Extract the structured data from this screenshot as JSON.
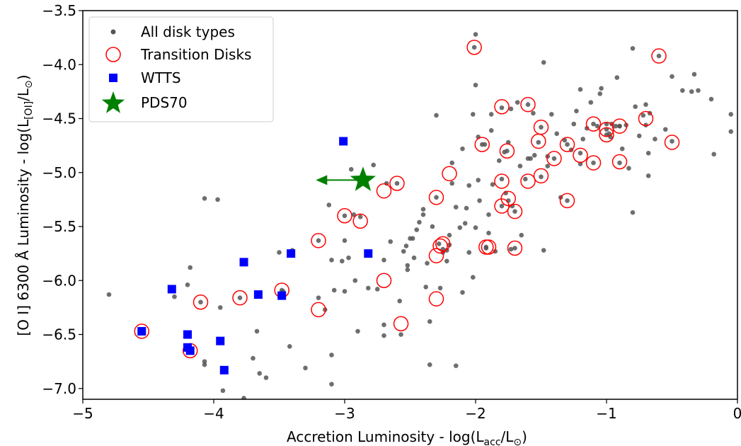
{
  "chart_data": {
    "type": "scatter",
    "xlabel": {
      "main": "Accretion Luminosity - log(L",
      "sub": "acc",
      "after": "/L",
      "sun": "⊙",
      "close": ")"
    },
    "ylabel": {
      "main": "[O I] 6300 Å Luminosity - log(L",
      "sub": "[OI]",
      "after": "/L",
      "sun": "⊙",
      "close": ")"
    },
    "xlim": [
      -5,
      0
    ],
    "ylim": [
      -7.1,
      -3.5
    ],
    "xticks": [
      -5,
      -4,
      -3,
      -2,
      -1,
      0
    ],
    "xtick_labels": [
      "−5",
      "−4",
      "−3",
      "−2",
      "−1",
      "0"
    ],
    "yticks": [
      -3.5,
      -4.0,
      -4.5,
      -5.0,
      -5.5,
      -6.0,
      -6.5,
      -7.0
    ],
    "ytick_labels": [
      "−3.5",
      "−4.0",
      "−4.5",
      "−5.0",
      "−5.5",
      "−6.0",
      "−6.5",
      "−7.0"
    ],
    "grid": false,
    "legend_position": "top-left",
    "colors": {
      "all_disks": "#555555",
      "transition": "#ff0000",
      "wtts": "#0000ff",
      "pds70": "#008000"
    },
    "legend": [
      {
        "label": "All disk types",
        "marker": "dot"
      },
      {
        "label": "Transition Disks",
        "marker": "open-circle"
      },
      {
        "label": "WTTS",
        "marker": "square"
      },
      {
        "label": "PDS70",
        "marker": "star"
      }
    ],
    "series": [
      {
        "name": "All disk types",
        "points": [
          [
            -4.8,
            -6.13
          ],
          [
            -4.55,
            -6.48
          ],
          [
            -4.3,
            -6.15
          ],
          [
            -4.2,
            -6.04
          ],
          [
            -4.18,
            -5.88
          ],
          [
            -4.18,
            -6.63
          ],
          [
            -4.1,
            -6.2
          ],
          [
            -4.07,
            -5.24
          ],
          [
            -4.07,
            -6.75
          ],
          [
            -4.07,
            -6.78
          ],
          [
            -3.97,
            -5.25
          ],
          [
            -3.95,
            -6.55
          ],
          [
            -3.95,
            -6.25
          ],
          [
            -3.93,
            -7.02
          ],
          [
            -3.8,
            -6.16
          ],
          [
            -3.77,
            -7.09
          ],
          [
            -3.7,
            -6.72
          ],
          [
            -3.67,
            -6.47
          ],
          [
            -3.65,
            -6.13
          ],
          [
            -3.65,
            -6.86
          ],
          [
            -3.6,
            -6.9
          ],
          [
            -3.5,
            -5.74
          ],
          [
            -3.48,
            -6.09
          ],
          [
            -3.47,
            -6.1
          ],
          [
            -3.42,
            -6.61
          ],
          [
            -3.4,
            -5.72
          ],
          [
            -3.3,
            -6.81
          ],
          [
            -3.2,
            -6.16
          ],
          [
            -3.2,
            -5.63
          ],
          [
            -3.15,
            -6.27
          ],
          [
            -3.12,
            -5.3
          ],
          [
            -3.1,
            -6.96
          ],
          [
            -3.1,
            -6.69
          ],
          [
            -3.1,
            -5.81
          ],
          [
            -3.08,
            -6.09
          ],
          [
            -3.02,
            -5.82
          ],
          [
            -3.0,
            -5.4
          ],
          [
            -3.0,
            -5.63
          ],
          [
            -3.0,
            -6.1
          ],
          [
            -2.97,
            -5.79
          ],
          [
            -2.95,
            -4.97
          ],
          [
            -2.93,
            -5.39
          ],
          [
            -2.92,
            -6.0
          ],
          [
            -2.9,
            -6.47
          ],
          [
            -2.88,
            -5.41
          ],
          [
            -2.82,
            -6.07
          ],
          [
            -2.78,
            -4.93
          ],
          [
            -2.75,
            -6.08
          ],
          [
            -2.7,
            -5.81
          ],
          [
            -2.7,
            -6.51
          ],
          [
            -2.7,
            -6.41
          ],
          [
            -2.68,
            -5.1
          ],
          [
            -2.65,
            -5.64
          ],
          [
            -2.6,
            -5.1
          ],
          [
            -2.58,
            -6.19
          ],
          [
            -2.57,
            -6.5
          ],
          [
            -2.55,
            -5.73
          ],
          [
            -2.53,
            -5.68
          ],
          [
            -2.52,
            -5.86
          ],
          [
            -2.52,
            -5.9
          ],
          [
            -2.5,
            -5.61
          ],
          [
            -2.48,
            -5.61
          ],
          [
            -2.47,
            -5.79
          ],
          [
            -2.45,
            -5.53
          ],
          [
            -2.43,
            -5.46
          ],
          [
            -2.4,
            -5.34
          ],
          [
            -2.4,
            -5.39
          ],
          [
            -2.38,
            -6.06
          ],
          [
            -2.37,
            -5.84
          ],
          [
            -2.35,
            -6.38
          ],
          [
            -2.35,
            -6.78
          ],
          [
            -2.33,
            -5.5
          ],
          [
            -2.3,
            -4.47
          ],
          [
            -2.3,
            -5.23
          ],
          [
            -2.28,
            -5.66
          ],
          [
            -2.27,
            -6.07
          ],
          [
            -2.25,
            -5.74
          ],
          [
            -2.25,
            -5.71
          ],
          [
            -2.22,
            -5.72
          ],
          [
            -2.22,
            -5.82
          ],
          [
            -2.2,
            -5.67
          ],
          [
            -2.2,
            -5.58
          ],
          [
            -2.18,
            -5.1
          ],
          [
            -2.18,
            -4.91
          ],
          [
            -2.15,
            -5.32
          ],
          [
            -2.15,
            -6.79
          ],
          [
            -2.12,
            -5.51
          ],
          [
            -2.1,
            -6.11
          ],
          [
            -2.1,
            -4.78
          ],
          [
            -2.08,
            -5.47
          ],
          [
            -2.07,
            -5.33
          ],
          [
            -2.05,
            -5.12
          ],
          [
            -2.05,
            -5.74
          ],
          [
            -2.02,
            -5.97
          ],
          [
            -2.02,
            -4.46
          ],
          [
            -2.01,
            -3.84
          ],
          [
            -2.0,
            -4.19
          ],
          [
            -2.0,
            -3.72
          ],
          [
            -2.0,
            -5.51
          ],
          [
            -1.98,
            -5.07
          ],
          [
            -1.98,
            -4.67
          ],
          [
            -1.97,
            -5.26
          ],
          [
            -1.95,
            -4.74
          ],
          [
            -1.93,
            -4.74
          ],
          [
            -1.92,
            -5.7
          ],
          [
            -1.92,
            -5.69
          ],
          [
            -1.9,
            -5.39
          ],
          [
            -1.9,
            -5.56
          ],
          [
            -1.88,
            -4.46
          ],
          [
            -1.88,
            -4.61
          ],
          [
            -1.87,
            -5.11
          ],
          [
            -1.85,
            -5.73
          ],
          [
            -1.82,
            -4.89
          ],
          [
            -1.8,
            -4.4
          ],
          [
            -1.8,
            -5.06
          ],
          [
            -1.8,
            -5.31
          ],
          [
            -1.78,
            -4.81
          ],
          [
            -1.77,
            -5.19
          ],
          [
            -1.76,
            -4.8
          ],
          [
            -1.75,
            -5.26
          ],
          [
            -1.75,
            -4.72
          ],
          [
            -1.73,
            -5.71
          ],
          [
            -1.73,
            -4.41
          ],
          [
            -1.72,
            -5.31
          ],
          [
            -1.7,
            -5.7
          ],
          [
            -1.7,
            -5.36
          ],
          [
            -1.68,
            -4.35
          ],
          [
            -1.66,
            -4.94
          ],
          [
            -1.65,
            -5.58
          ],
          [
            -1.62,
            -5.06
          ],
          [
            -1.6,
            -4.87
          ],
          [
            -1.6,
            -4.37
          ],
          [
            -1.58,
            -4.87
          ],
          [
            -1.56,
            -4.45
          ],
          [
            -1.55,
            -4.84
          ],
          [
            -1.52,
            -4.72
          ],
          [
            -1.5,
            -5.04
          ],
          [
            -1.5,
            -4.58
          ],
          [
            -1.48,
            -5.72
          ],
          [
            -1.48,
            -3.98
          ],
          [
            -1.45,
            -4.85
          ],
          [
            -1.45,
            -4.94
          ],
          [
            -1.42,
            -4.46
          ],
          [
            -1.4,
            -4.87
          ],
          [
            -1.38,
            -4.64
          ],
          [
            -1.35,
            -5.23
          ],
          [
            -1.32,
            -4.7
          ],
          [
            -1.3,
            -4.74
          ],
          [
            -1.3,
            -5.26
          ],
          [
            -1.27,
            -4.79
          ],
          [
            -1.25,
            -4.55
          ],
          [
            -1.23,
            -4.43
          ],
          [
            -1.2,
            -4.92
          ],
          [
            -1.2,
            -4.82
          ],
          [
            -1.2,
            -4.23
          ],
          [
            -1.18,
            -4.69
          ],
          [
            -1.15,
            -4.59
          ],
          [
            -1.12,
            -4.35
          ],
          [
            -1.1,
            -4.91
          ],
          [
            -1.1,
            -4.55
          ],
          [
            -1.07,
            -4.57
          ],
          [
            -1.05,
            -4.27
          ],
          [
            -1.04,
            -4.22
          ],
          [
            -1.0,
            -4.65
          ],
          [
            -1.0,
            -4.6
          ],
          [
            -1.0,
            -4.55
          ],
          [
            -0.98,
            -4.64
          ],
          [
            -0.97,
            -4.67
          ],
          [
            -0.96,
            -4.55
          ],
          [
            -0.93,
            -4.57
          ],
          [
            -0.92,
            -4.12
          ],
          [
            -0.9,
            -4.57
          ],
          [
            -0.9,
            -4.57
          ],
          [
            -0.9,
            -4.91
          ],
          [
            -0.88,
            -4.78
          ],
          [
            -0.85,
            -4.56
          ],
          [
            -0.83,
            -4.96
          ],
          [
            -0.8,
            -5.37
          ],
          [
            -0.8,
            -3.85
          ],
          [
            -0.78,
            -4.39
          ],
          [
            -0.75,
            -4.66
          ],
          [
            -0.72,
            -4.47
          ],
          [
            -0.7,
            -4.37
          ],
          [
            -0.7,
            -4.56
          ],
          [
            -0.68,
            -4.82
          ],
          [
            -0.68,
            -5.03
          ],
          [
            -0.67,
            -4.45
          ],
          [
            -0.63,
            -4.69
          ],
          [
            -0.6,
            -3.92
          ],
          [
            -0.55,
            -4.6
          ],
          [
            -0.5,
            -4.71
          ],
          [
            -0.5,
            -4.11
          ],
          [
            -0.42,
            -4.24
          ],
          [
            -0.35,
            -4.25
          ],
          [
            -0.33,
            -4.09
          ],
          [
            -0.3,
            -4.24
          ],
          [
            -0.2,
            -4.32
          ],
          [
            -0.18,
            -4.83
          ],
          [
            -0.05,
            -4.46
          ],
          [
            -0.05,
            -4.62
          ]
        ]
      },
      {
        "name": "Transition Disks",
        "points": [
          [
            -4.55,
            -6.47
          ],
          [
            -4.1,
            -6.2
          ],
          [
            -4.18,
            -6.65
          ],
          [
            -3.8,
            -6.16
          ],
          [
            -3.48,
            -6.09
          ],
          [
            -3.2,
            -5.63
          ],
          [
            -3.2,
            -6.27
          ],
          [
            -3.0,
            -5.4
          ],
          [
            -2.88,
            -5.45
          ],
          [
            -2.7,
            -5.17
          ],
          [
            -2.6,
            -5.1
          ],
          [
            -2.7,
            -6.0
          ],
          [
            -2.57,
            -6.4
          ],
          [
            -2.3,
            -5.23
          ],
          [
            -2.3,
            -5.77
          ],
          [
            -2.27,
            -5.68
          ],
          [
            -2.25,
            -5.66
          ],
          [
            -2.2,
            -5.01
          ],
          [
            -2.3,
            -6.17
          ],
          [
            -2.01,
            -3.84
          ],
          [
            -1.95,
            -4.74
          ],
          [
            -1.92,
            -5.69
          ],
          [
            -1.9,
            -5.69
          ],
          [
            -1.8,
            -4.39
          ],
          [
            -1.8,
            -5.08
          ],
          [
            -1.8,
            -5.31
          ],
          [
            -1.76,
            -4.8
          ],
          [
            -1.75,
            -5.24
          ],
          [
            -1.7,
            -5.36
          ],
          [
            -1.7,
            -5.7
          ],
          [
            -1.6,
            -4.37
          ],
          [
            -1.6,
            -5.08
          ],
          [
            -1.52,
            -4.71
          ],
          [
            -1.5,
            -4.58
          ],
          [
            -1.5,
            -5.03
          ],
          [
            -1.4,
            -4.87
          ],
          [
            -1.3,
            -4.74
          ],
          [
            -1.3,
            -5.26
          ],
          [
            -1.2,
            -4.84
          ],
          [
            -1.1,
            -4.91
          ],
          [
            -1.1,
            -4.55
          ],
          [
            -1.0,
            -4.65
          ],
          [
            -1.0,
            -4.6
          ],
          [
            -0.9,
            -4.57
          ],
          [
            -0.9,
            -4.9
          ],
          [
            -0.7,
            -4.5
          ],
          [
            -0.6,
            -3.92
          ],
          [
            -0.5,
            -4.72
          ]
        ]
      },
      {
        "name": "WTTS",
        "points": [
          [
            -4.55,
            -6.47
          ],
          [
            -4.32,
            -6.08
          ],
          [
            -4.2,
            -6.5
          ],
          [
            -4.2,
            -6.62
          ],
          [
            -4.18,
            -6.65
          ],
          [
            -3.95,
            -6.56
          ],
          [
            -3.92,
            -6.83
          ],
          [
            -3.77,
            -5.83
          ],
          [
            -3.66,
            -6.13
          ],
          [
            -3.48,
            -6.14
          ],
          [
            -3.41,
            -5.75
          ],
          [
            -3.01,
            -4.71
          ],
          [
            -2.82,
            -5.75
          ]
        ]
      },
      {
        "name": "PDS70",
        "points": [
          [
            -2.86,
            -5.07
          ]
        ],
        "upper_limit_arrow_to_x": -3.22
      }
    ]
  }
}
